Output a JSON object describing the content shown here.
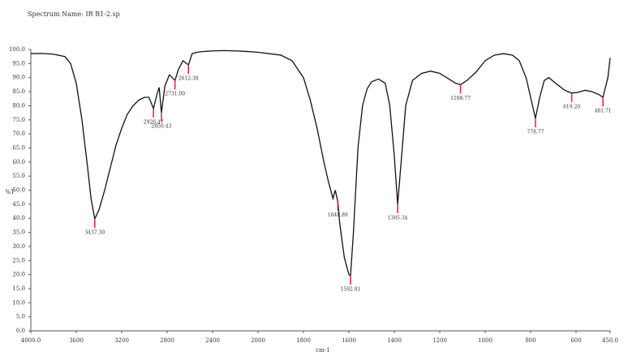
{
  "chart_data": {
    "type": "line",
    "title": "Spectrum Name: IR B1-2.sp",
    "ylabel": "%T",
    "xlabel": "cm-1",
    "xlim": [
      4000,
      450
    ],
    "xscale_break": 2000,
    "xscale_ratio": 2,
    "ylim": [
      0,
      100
    ],
    "xticks": [
      {
        "value": 4000,
        "label": "4000.0"
      },
      3600,
      3200,
      2800,
      2400,
      2000,
      1800,
      1600,
      1400,
      1200,
      1000,
      800,
      600,
      {
        "value": 450,
        "label": "450.0"
      }
    ],
    "yticks": [
      {
        "value": 0,
        "label": "0.0"
      },
      {
        "value": 5,
        "label": "5.0"
      },
      {
        "value": 10,
        "label": "10.0"
      },
      {
        "value": 15,
        "label": "15.0"
      },
      {
        "value": 20,
        "label": "20.0"
      },
      {
        "value": 25,
        "label": "25.0"
      },
      {
        "value": 30,
        "label": "30.0"
      },
      {
        "value": 35,
        "label": "35.0"
      },
      {
        "value": 40,
        "label": "40.0"
      },
      {
        "value": 45,
        "label": "45.0"
      },
      {
        "value": 50,
        "label": "50.0"
      },
      {
        "value": 55,
        "label": "55.0"
      },
      {
        "value": 60,
        "label": "60.0"
      },
      {
        "value": 65,
        "label": "65.0"
      },
      {
        "value": 70,
        "label": "70.0"
      },
      {
        "value": 75,
        "label": "75.0"
      },
      {
        "value": 80,
        "label": "80.0"
      },
      {
        "value": 85,
        "label": "85.0"
      },
      {
        "value": 90,
        "label": "90.0"
      },
      {
        "value": 95,
        "label": "95.0"
      },
      {
        "value": 100,
        "label": "100.0"
      }
    ],
    "color": "#111111",
    "peak_color": "#e8194a",
    "x": [
      4000,
      3900,
      3800,
      3700,
      3650,
      3600,
      3550,
      3500,
      3470,
      3437.3,
      3400,
      3350,
      3300,
      3250,
      3200,
      3150,
      3100,
      3050,
      3000,
      2960,
      2920.47,
      2890,
      2870,
      2850.43,
      2820,
      2780,
      2731,
      2700,
      2660,
      2612.38,
      2580,
      2540,
      2500,
      2400,
      2300,
      2200,
      2100,
      2000,
      1900,
      1850,
      1800,
      1770,
      1740,
      1710,
      1690,
      1670,
      1660,
      1648.89,
      1640,
      1620,
      1600,
      1592.81,
      1580,
      1560,
      1540,
      1520,
      1500,
      1470,
      1440,
      1420,
      1400,
      1385.34,
      1370,
      1350,
      1320,
      1280,
      1240,
      1200,
      1160,
      1130,
      1108.77,
      1080,
      1040,
      1000,
      960,
      920,
      880,
      850,
      820,
      800,
      778.77,
      760,
      740,
      720,
      690,
      650,
      619.2,
      590,
      560,
      530,
      500,
      481.71,
      460,
      450
    ],
    "values": [
      98.5,
      98.6,
      98.3,
      97.5,
      95,
      88,
      75,
      58,
      47,
      39.8,
      43,
      50,
      58,
      66,
      72,
      77,
      80,
      82,
      83,
      83,
      79,
      84,
      86.5,
      77.5,
      87,
      91,
      89,
      93,
      96,
      94.5,
      98.5,
      99,
      99.2,
      99.5,
      99.6,
      99.5,
      99.3,
      99,
      98,
      96,
      90,
      82,
      72,
      60,
      53,
      47,
      50,
      46,
      38,
      26,
      20,
      19.6,
      35,
      65,
      80,
      86,
      88.5,
      89.5,
      88,
      80,
      62,
      45,
      60,
      80,
      89,
      91.5,
      92.3,
      91.5,
      89.5,
      88,
      87.5,
      89,
      92,
      96,
      98,
      98.5,
      98,
      96,
      90,
      83,
      75.5,
      83,
      89,
      90,
      88,
      85.5,
      84.5,
      84.8,
      85.5,
      85,
      84,
      83,
      90,
      97
    ],
    "peaks": {
      "x": [
        3437.3,
        2920.47,
        2850.43,
        2731,
        2612.38,
        1648.89,
        1592.81,
        1385.34,
        1108.77,
        778.77,
        619.2,
        481.71
      ],
      "values": [
        39.8,
        79,
        77.5,
        89,
        94.5,
        46,
        19.6,
        45,
        87.5,
        75.5,
        84.5,
        83
      ],
      "labels": [
        "3437.30",
        "2920.47",
        "2850.43",
        "2731.00",
        "2612.38",
        "1648.89",
        "1592.81",
        "1385.34",
        "1108.77",
        "778.77",
        "619.20",
        "481.71"
      ]
    }
  }
}
